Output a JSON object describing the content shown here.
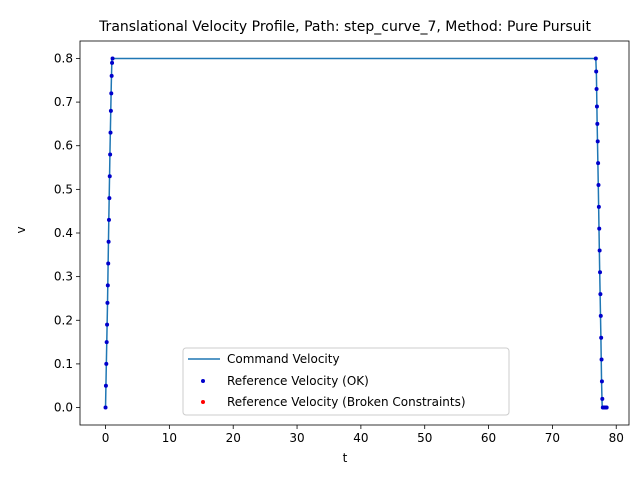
{
  "chart_data": {
    "type": "line",
    "title": "Translational Velocity Profile, Path: step_curve_7, Method: Pure Pursuit",
    "xlabel": "t",
    "ylabel": "v",
    "xlim": [
      -4.0,
      82.0
    ],
    "ylim": [
      -0.04,
      0.84
    ],
    "xticks": [
      0,
      10,
      20,
      30,
      40,
      50,
      60,
      70,
      80
    ],
    "yticks": [
      0.0,
      0.1,
      0.2,
      0.3,
      0.4,
      0.5,
      0.6,
      0.7,
      0.8
    ],
    "ytick_labels": [
      "0.0",
      "0.1",
      "0.2",
      "0.3",
      "0.4",
      "0.5",
      "0.6",
      "0.7",
      "0.8"
    ],
    "grid": false,
    "legend_position": "lower-center",
    "series": [
      {
        "name": "Command Velocity",
        "kind": "line",
        "color": "#1f77b4",
        "x": [
          0.0,
          0.1,
          0.3,
          0.5,
          0.7,
          0.9,
          1.0,
          1.1,
          40.0,
          76.8,
          76.9,
          77.0,
          77.2,
          77.4,
          77.6,
          77.7,
          77.8,
          78.2,
          78.6
        ],
        "y": [
          0.0,
          0.08,
          0.23,
          0.42,
          0.59,
          0.74,
          0.8,
          0.8,
          0.8,
          0.8,
          0.76,
          0.66,
          0.5,
          0.32,
          0.16,
          0.06,
          0.0,
          0.0,
          0.0
        ]
      },
      {
        "name": "Reference Velocity (OK)",
        "kind": "scatter",
        "color": "#0000cc",
        "x": [
          0.0,
          0.06,
          0.12,
          0.18,
          0.24,
          0.3,
          0.36,
          0.42,
          0.48,
          0.54,
          0.6,
          0.66,
          0.72,
          0.78,
          0.84,
          0.9,
          0.96,
          1.02,
          1.1,
          76.8,
          76.86,
          76.92,
          76.98,
          77.04,
          77.1,
          77.16,
          77.22,
          77.28,
          77.34,
          77.4,
          77.46,
          77.52,
          77.58,
          77.64,
          77.7,
          77.76,
          77.82,
          77.9,
          78.0,
          78.1,
          78.2,
          78.3,
          78.4,
          78.5
        ],
        "y": [
          0.0,
          0.05,
          0.1,
          0.15,
          0.19,
          0.24,
          0.28,
          0.33,
          0.38,
          0.43,
          0.48,
          0.53,
          0.58,
          0.63,
          0.68,
          0.72,
          0.76,
          0.79,
          0.8,
          0.8,
          0.77,
          0.73,
          0.69,
          0.65,
          0.61,
          0.56,
          0.51,
          0.46,
          0.41,
          0.36,
          0.31,
          0.26,
          0.21,
          0.16,
          0.11,
          0.06,
          0.02,
          0.0,
          0.0,
          0.0,
          0.0,
          0.0,
          0.0,
          0.0
        ]
      },
      {
        "name": "Reference Velocity (Broken Constraints)",
        "kind": "scatter",
        "color": "#ff0000",
        "x": [],
        "y": []
      }
    ]
  }
}
